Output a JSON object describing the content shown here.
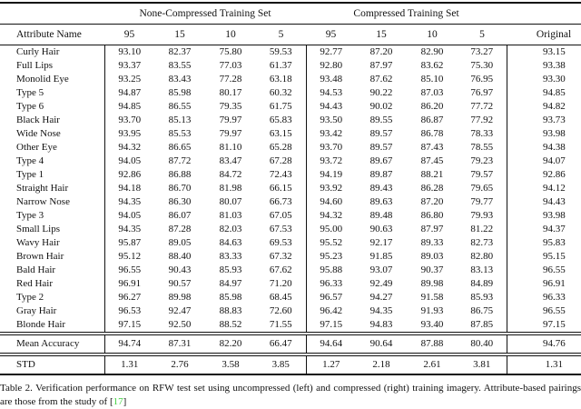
{
  "table": {
    "group_headers": {
      "left": "None-Compressed Training Set",
      "right": "Compressed Training Set"
    },
    "columns": [
      "Attribute Name",
      "95",
      "15",
      "10",
      "5",
      "95",
      "15",
      "10",
      "5",
      "Original"
    ],
    "rows": [
      {
        "name": "Curly Hair",
        "values": [
          "93.10",
          "82.37",
          "75.80",
          "59.53",
          "92.77",
          "87.20",
          "82.90",
          "73.27",
          "93.15"
        ]
      },
      {
        "name": "Full Lips",
        "values": [
          "93.37",
          "83.55",
          "77.03",
          "61.37",
          "92.80",
          "87.97",
          "83.62",
          "75.30",
          "93.38"
        ]
      },
      {
        "name": "Monolid Eye",
        "values": [
          "93.25",
          "83.43",
          "77.28",
          "63.18",
          "93.48",
          "87.62",
          "85.10",
          "76.95",
          "93.30"
        ]
      },
      {
        "name": "Type 5",
        "values": [
          "94.87",
          "85.98",
          "80.17",
          "60.32",
          "94.53",
          "90.22",
          "87.03",
          "76.97",
          "94.85"
        ]
      },
      {
        "name": "Type 6",
        "values": [
          "94.85",
          "86.55",
          "79.35",
          "61.75",
          "94.43",
          "90.02",
          "86.20",
          "77.72",
          "94.82"
        ]
      },
      {
        "name": "Black Hair",
        "values": [
          "93.70",
          "85.13",
          "79.97",
          "65.83",
          "93.50",
          "89.55",
          "86.87",
          "77.92",
          "93.73"
        ]
      },
      {
        "name": "Wide Nose",
        "values": [
          "93.95",
          "85.53",
          "79.97",
          "63.15",
          "93.42",
          "89.57",
          "86.78",
          "78.33",
          "93.98"
        ]
      },
      {
        "name": "Other Eye",
        "values": [
          "94.32",
          "86.65",
          "81.10",
          "65.28",
          "93.70",
          "89.57",
          "87.43",
          "78.55",
          "94.38"
        ]
      },
      {
        "name": "Type 4",
        "values": [
          "94.05",
          "87.72",
          "83.47",
          "67.28",
          "93.72",
          "89.67",
          "87.45",
          "79.23",
          "94.07"
        ]
      },
      {
        "name": "Type 1",
        "values": [
          "92.86",
          "86.88",
          "84.72",
          "72.43",
          "94.19",
          "89.87",
          "88.21",
          "79.57",
          "92.86"
        ]
      },
      {
        "name": "Straight Hair",
        "values": [
          "94.18",
          "86.70",
          "81.98",
          "66.15",
          "93.92",
          "89.43",
          "86.28",
          "79.65",
          "94.12"
        ]
      },
      {
        "name": "Narrow Nose",
        "values": [
          "94.35",
          "86.30",
          "80.07",
          "66.73",
          "94.60",
          "89.63",
          "87.20",
          "79.77",
          "94.43"
        ]
      },
      {
        "name": "Type 3",
        "values": [
          "94.05",
          "86.07",
          "81.03",
          "67.05",
          "94.32",
          "89.48",
          "86.80",
          "79.93",
          "93.98"
        ]
      },
      {
        "name": "Small Lips",
        "values": [
          "94.35",
          "87.28",
          "82.03",
          "67.53",
          "95.00",
          "90.63",
          "87.97",
          "81.22",
          "94.37"
        ]
      },
      {
        "name": "Wavy Hair",
        "values": [
          "95.87",
          "89.05",
          "84.63",
          "69.53",
          "95.52",
          "92.17",
          "89.33",
          "82.73",
          "95.83"
        ]
      },
      {
        "name": "Brown Hair",
        "values": [
          "95.12",
          "88.40",
          "83.33",
          "67.32",
          "95.23",
          "91.85",
          "89.03",
          "82.80",
          "95.15"
        ]
      },
      {
        "name": "Bald Hair",
        "values": [
          "96.55",
          "90.43",
          "85.93",
          "67.62",
          "95.88",
          "93.07",
          "90.37",
          "83.13",
          "96.55"
        ]
      },
      {
        "name": "Red Hair",
        "values": [
          "96.91",
          "90.57",
          "84.97",
          "71.20",
          "96.33",
          "92.49",
          "89.98",
          "84.89",
          "96.91"
        ]
      },
      {
        "name": "Type 2",
        "values": [
          "96.27",
          "89.98",
          "85.98",
          "68.45",
          "96.57",
          "94.27",
          "91.58",
          "85.93",
          "96.33"
        ]
      },
      {
        "name": "Gray Hair",
        "values": [
          "96.53",
          "92.47",
          "88.83",
          "72.60",
          "96.42",
          "94.35",
          "91.93",
          "86.75",
          "96.55"
        ]
      },
      {
        "name": "Blonde Hair",
        "values": [
          "97.15",
          "92.50",
          "88.52",
          "71.55",
          "97.15",
          "94.83",
          "93.40",
          "87.85",
          "97.15"
        ]
      }
    ],
    "mean_row": {
      "name": "Mean Accuracy",
      "values": [
        "94.74",
        "87.31",
        "82.20",
        "66.47",
        "94.64",
        "90.64",
        "87.88",
        "80.40",
        "94.76"
      ]
    },
    "std_row": {
      "name": "STD",
      "values": [
        "1.31",
        "2.76",
        "3.58",
        "3.85",
        "1.27",
        "2.18",
        "2.61",
        "3.81",
        "1.31"
      ]
    }
  },
  "caption": {
    "prefix": "Table 2. Verification performance on RFW test set using uncompressed (left) and compressed (right) training imagery.  Attribute-based pairings are those from the study of [",
    "citation": "17",
    "suffix": "]",
    "citation_color": "#42d142"
  }
}
